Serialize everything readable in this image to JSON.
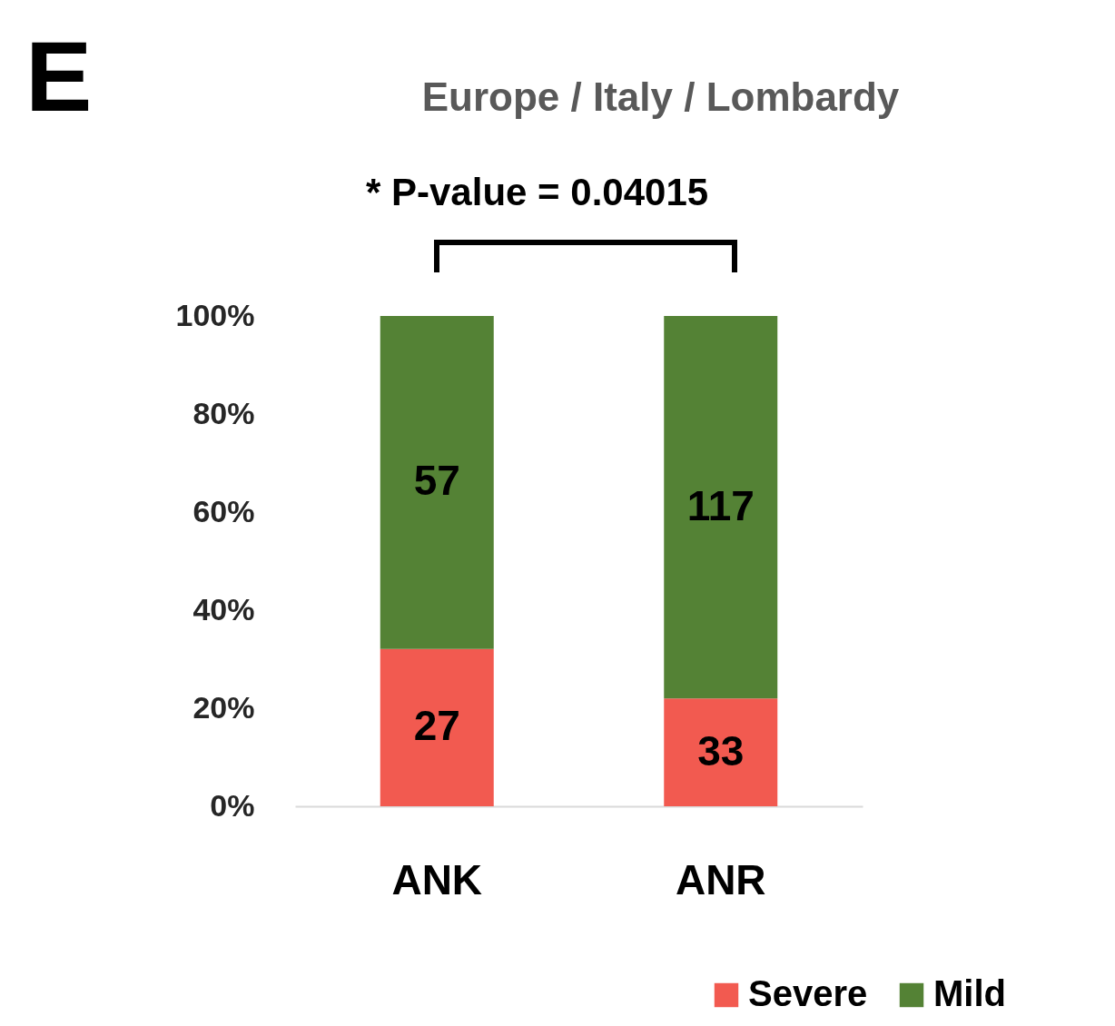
{
  "chart_data": {
    "type": "bar",
    "stacked": true,
    "title": "Europe / Italy / Lombardy",
    "categories": [
      "ANK",
      "ANR"
    ],
    "series": [
      {
        "name": "Severe",
        "color": "#f25a50",
        "values": [
          32.1,
          22.0
        ]
      },
      {
        "name": "Mild",
        "color": "#548235",
        "values": [
          67.9,
          78.0
        ]
      }
    ],
    "ylim": [
      0,
      100
    ],
    "yticks": [
      {
        "value": 0,
        "label": "0%"
      },
      {
        "value": 20,
        "label": "20%"
      },
      {
        "value": 40,
        "label": "40%"
      },
      {
        "value": 60,
        "label": "60%"
      },
      {
        "value": 80,
        "label": "80%"
      },
      {
        "value": 100,
        "label": "100%"
      }
    ],
    "grid": false,
    "legend": "bottom right",
    "annotations": [
      "E",
      "* P-value = 0.04015",
      "27",
      "57",
      "33",
      "117"
    ]
  }
}
